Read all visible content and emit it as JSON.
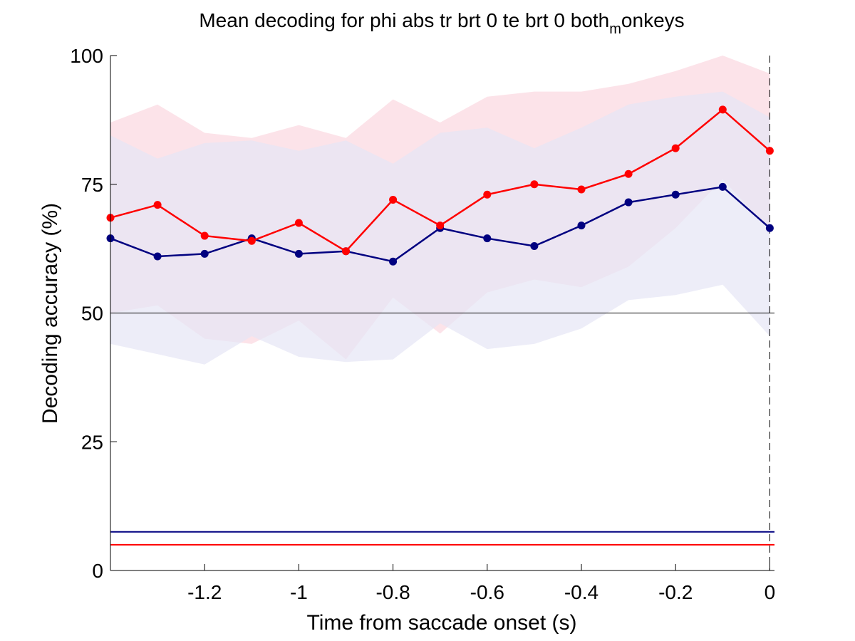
{
  "chart_data": {
    "type": "line",
    "title": {
      "prefix": "Mean decoding for phi abs tr brt 0 te brt 0  both",
      "subscript": "m",
      "suffix": "onkeys"
    },
    "xlabel": "Time from saccade onset (s)",
    "ylabel": "Decoding accuracy (%)",
    "xlim": [
      -1.4,
      0.01
    ],
    "ylim": [
      0,
      100
    ],
    "xticks": [
      -1.2,
      -1,
      -0.8,
      -0.6,
      -0.4,
      -0.2,
      0
    ],
    "xtick_labels": [
      "-1.2",
      "-1",
      "-0.8",
      "-0.6",
      "-0.4",
      "-0.2",
      "0"
    ],
    "yticks": [
      0,
      25,
      50,
      75,
      100
    ],
    "ytick_labels": [
      "0",
      "25",
      "50",
      "75",
      "100"
    ],
    "grid": false,
    "legend": "none",
    "x": [
      -1.4,
      -1.3,
      -1.2,
      -1.1,
      -1.0,
      -0.9,
      -0.8,
      -0.7,
      -0.6,
      -0.5,
      -0.4,
      -0.3,
      -0.2,
      -0.1,
      0.0
    ],
    "series": [
      {
        "color": "#ff0000",
        "band_color": "#fbd9e2",
        "values": [
          68.5,
          71.0,
          65.0,
          64.0,
          67.5,
          62.0,
          72.0,
          67.0,
          73.0,
          75.0,
          74.0,
          77.0,
          82.0,
          89.5,
          81.5
        ],
        "band_upper": [
          87.0,
          90.5,
          85.0,
          84.0,
          86.5,
          84.0,
          91.5,
          87.0,
          92.0,
          93.0,
          93.0,
          94.5,
          97.0,
          100.0,
          96.5
        ],
        "band_lower": [
          50.0,
          51.5,
          45.0,
          44.0,
          48.5,
          41.0,
          53.0,
          46.0,
          54.0,
          56.5,
          55.0,
          59.0,
          66.5,
          76.0,
          66.0
        ],
        "chance": 5.0
      },
      {
        "color": "#000080",
        "band_color": "#e6e6f5",
        "values": [
          64.5,
          61.0,
          61.5,
          64.5,
          61.5,
          62.0,
          60.0,
          66.5,
          64.5,
          63.0,
          67.0,
          71.5,
          73.0,
          74.5,
          66.5
        ],
        "band_upper": [
          84.5,
          80.0,
          83.0,
          83.5,
          81.5,
          83.5,
          79.0,
          85.0,
          86.0,
          82.0,
          86.0,
          90.5,
          92.0,
          93.0,
          88.0
        ],
        "band_lower": [
          44.0,
          42.0,
          40.0,
          45.5,
          41.5,
          40.5,
          41.0,
          48.0,
          43.0,
          44.0,
          47.0,
          52.5,
          53.5,
          55.5,
          45.5
        ],
        "chance": 7.5
      }
    ],
    "reference_line": 50,
    "vertical_marker": 0,
    "colors": {
      "reference": "#000000",
      "axes": "#000000"
    }
  }
}
